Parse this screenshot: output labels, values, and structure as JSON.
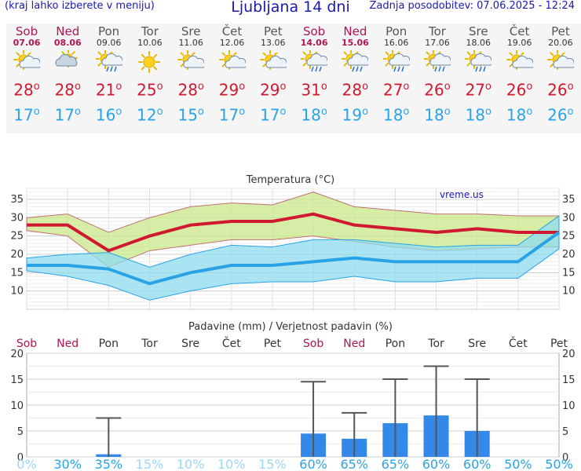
{
  "header": {
    "menu_hint": "(kraj lahko izberete v meniju)",
    "title": "Ljubljana 14 dni",
    "updated": "Zadnja posodobitev: 07.06.2025 - 12:24"
  },
  "days": [
    {
      "name": "Sob",
      "date": "07.06",
      "weekend": true,
      "icon": "sun-cloud-icon",
      "tmax": "28",
      "tmin": "17"
    },
    {
      "name": "Ned",
      "date": "08.06",
      "weekend": true,
      "icon": "cloudy-icon",
      "tmax": "28",
      "tmin": "17"
    },
    {
      "name": "Pon",
      "date": "09.06",
      "weekend": false,
      "icon": "sun-rain-icon",
      "tmax": "21",
      "tmin": "16"
    },
    {
      "name": "Tor",
      "date": "10.06",
      "weekend": false,
      "icon": "sun-icon",
      "tmax": "25",
      "tmin": "12"
    },
    {
      "name": "Sre",
      "date": "11.06",
      "weekend": false,
      "icon": "sun-cloud-icon",
      "tmax": "28",
      "tmin": "15"
    },
    {
      "name": "Čet",
      "date": "12.06",
      "weekend": false,
      "icon": "sun-cloud-icon",
      "tmax": "29",
      "tmin": "17"
    },
    {
      "name": "Pet",
      "date": "13.06",
      "weekend": false,
      "icon": "sun-cloud-icon",
      "tmax": "29",
      "tmin": "17"
    },
    {
      "name": "Sob",
      "date": "14.06",
      "weekend": true,
      "icon": "sun-rain-icon",
      "tmax": "31",
      "tmin": "18"
    },
    {
      "name": "Ned",
      "date": "15.06",
      "weekend": true,
      "icon": "sun-rain-icon",
      "tmax": "28",
      "tmin": "19"
    },
    {
      "name": "Pon",
      "date": "16.06",
      "weekend": false,
      "icon": "sun-rain-icon",
      "tmax": "27",
      "tmin": "18"
    },
    {
      "name": "Tor",
      "date": "17.06",
      "weekend": false,
      "icon": "sun-rain-icon",
      "tmax": "26",
      "tmin": "18"
    },
    {
      "name": "Sre",
      "date": "18.06",
      "weekend": false,
      "icon": "sun-rain-icon",
      "tmax": "27",
      "tmin": "18"
    },
    {
      "name": "Čet",
      "date": "19.06",
      "weekend": false,
      "icon": "sun-cloud-icon",
      "tmax": "26",
      "tmin": "18"
    },
    {
      "name": "Pet",
      "date": "20.06",
      "weekend": false,
      "icon": "sun-cloud-icon",
      "tmax": "26",
      "tmin": "26"
    }
  ],
  "colors": {
    "weekend": "#b0154f",
    "tmax": "#d01830",
    "tmin": "#29a3e6",
    "max_band": "#c9e88a",
    "min_band": "#8fdcef",
    "bar": "#3388e8",
    "prob": "#29a3e6",
    "prob_low": "#9ed7f2"
  },
  "chart_data": [
    {
      "type": "line",
      "title": "Temperatura (°C)",
      "watermark": "vreme.us",
      "ylim": [
        5,
        38
      ],
      "yticks": [
        10,
        15,
        20,
        25,
        30,
        35
      ],
      "grid": true,
      "series": [
        {
          "role": "max",
          "values": [
            28,
            28,
            21,
            25,
            28,
            29,
            29,
            31,
            28,
            27,
            26,
            27,
            26,
            26
          ],
          "upper": [
            30,
            31,
            26,
            30,
            33,
            34,
            33.5,
            37,
            33,
            32,
            31,
            31,
            30.5,
            30.5
          ],
          "lower": [
            26.5,
            25,
            16.5,
            21,
            22.5,
            24,
            24,
            25,
            23.5,
            22,
            21,
            21.5,
            22,
            22
          ]
        },
        {
          "role": "min",
          "values": [
            17,
            17,
            16,
            12,
            15,
            17,
            17,
            18,
            19,
            18,
            18,
            18,
            18,
            26
          ],
          "upper": [
            19,
            20,
            20.5,
            16.5,
            20,
            22.5,
            22,
            24,
            24,
            23,
            22,
            22.5,
            22.5,
            30.5
          ],
          "lower": [
            15.5,
            14,
            11.5,
            7.5,
            10,
            12,
            12.5,
            12.5,
            14,
            12.5,
            12.5,
            13.5,
            13.5,
            21.5
          ]
        }
      ]
    },
    {
      "type": "bar",
      "title": "Padavine (mm) / Verjetnost padavin (%)",
      "ylim": [
        0,
        20
      ],
      "yticks": [
        0,
        5,
        10,
        15,
        20
      ],
      "categories": [
        "Sob",
        "Ned",
        "Pon",
        "Tor",
        "Sre",
        "Čet",
        "Pet",
        "Sob",
        "Ned",
        "Pon",
        "Tor",
        "Sre",
        "Čet",
        "Pet"
      ],
      "weekend": [
        true,
        true,
        false,
        false,
        false,
        false,
        false,
        true,
        true,
        false,
        false,
        false,
        false,
        false
      ],
      "values": [
        0,
        0,
        0.5,
        0,
        0,
        0,
        0,
        4.5,
        3.5,
        6.5,
        8,
        5,
        0,
        0
      ],
      "error_max": [
        0,
        0,
        7.5,
        0,
        0,
        0,
        0,
        14.5,
        8.5,
        15,
        17.5,
        15,
        0,
        0
      ],
      "probability": [
        "0%",
        "30%",
        "35%",
        "15%",
        "10%",
        "10%",
        "15%",
        "60%",
        "65%",
        "65%",
        "60%",
        "60%",
        "50%",
        "50%"
      ]
    }
  ]
}
